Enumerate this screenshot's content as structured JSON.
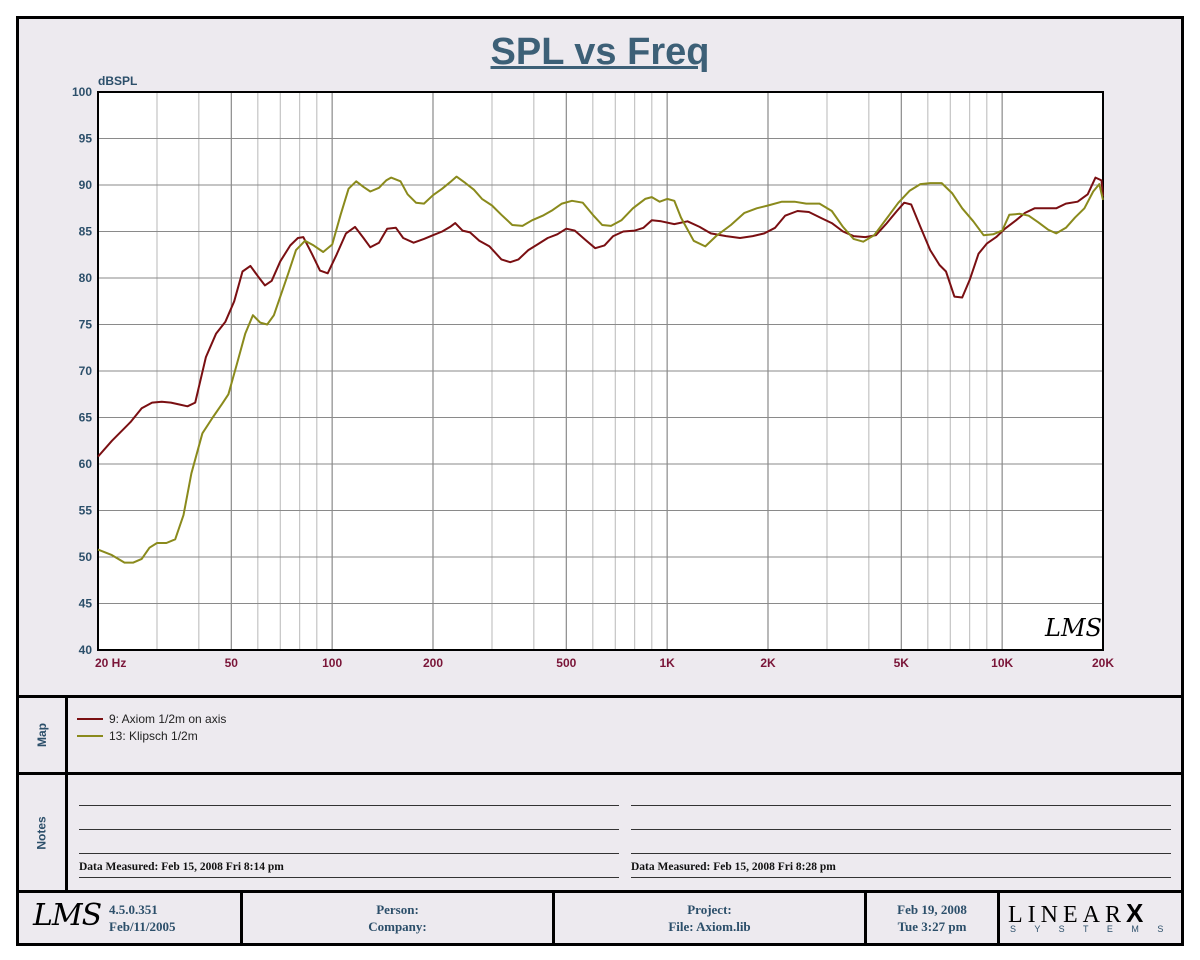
{
  "chart_data": {
    "type": "line",
    "title": "SPL vs Freq",
    "ylabel": "dBSPL",
    "xlabel": "",
    "xscale": "log",
    "xlim": [
      20,
      20000
    ],
    "ylim": [
      40,
      100
    ],
    "yticks": [
      "100",
      "95",
      "90",
      "85",
      "80",
      "75",
      "70",
      "65",
      "60",
      "55",
      "50",
      "45",
      "40"
    ],
    "xticks": [
      {
        "label": "20  Hz",
        "value": 20
      },
      {
        "label": "50",
        "value": 50
      },
      {
        "label": "100",
        "value": 100
      },
      {
        "label": "200",
        "value": 200
      },
      {
        "label": "500",
        "value": 500
      },
      {
        "label": "1K",
        "value": 1000
      },
      {
        "label": "2K",
        "value": 2000
      },
      {
        "label": "5K",
        "value": 5000
      },
      {
        "label": "10K",
        "value": 10000
      },
      {
        "label": "20K",
        "value": 20000
      }
    ],
    "grid": true,
    "watermark": "LMS",
    "series": [
      {
        "name": "9: Axiom 1/2m on axis",
        "color": "#7a0f12",
        "points": [
          [
            20,
            60.8
          ],
          [
            22,
            62.5
          ],
          [
            25,
            64.5
          ],
          [
            27,
            66
          ],
          [
            29,
            66.6
          ],
          [
            31,
            66.7
          ],
          [
            33,
            66.6
          ],
          [
            35,
            66.4
          ],
          [
            37,
            66.2
          ],
          [
            39,
            66.6
          ],
          [
            42,
            71.5
          ],
          [
            45,
            74
          ],
          [
            48,
            75.3
          ],
          [
            51,
            77.5
          ],
          [
            54,
            80.7
          ],
          [
            57,
            81.3
          ],
          [
            60,
            80.2
          ],
          [
            63,
            79.2
          ],
          [
            66,
            79.7
          ],
          [
            70,
            81.8
          ],
          [
            75,
            83.5
          ],
          [
            79,
            84.3
          ],
          [
            82,
            84.4
          ],
          [
            87,
            82.6
          ],
          [
            92,
            80.8
          ],
          [
            97,
            80.5
          ],
          [
            103,
            82.5
          ],
          [
            110,
            84.8
          ],
          [
            117,
            85.5
          ],
          [
            124,
            84.3
          ],
          [
            130,
            83.3
          ],
          [
            138,
            83.8
          ],
          [
            146,
            85.3
          ],
          [
            155,
            85.4
          ],
          [
            163,
            84.3
          ],
          [
            175,
            83.8
          ],
          [
            188,
            84.2
          ],
          [
            200,
            84.6
          ],
          [
            213,
            85
          ],
          [
            225,
            85.5
          ],
          [
            233,
            85.9
          ],
          [
            245,
            85.1
          ],
          [
            258,
            84.9
          ],
          [
            275,
            84
          ],
          [
            295,
            83.4
          ],
          [
            320,
            82
          ],
          [
            340,
            81.7
          ],
          [
            360,
            82
          ],
          [
            385,
            83
          ],
          [
            410,
            83.6
          ],
          [
            440,
            84.3
          ],
          [
            470,
            84.7
          ],
          [
            500,
            85.3
          ],
          [
            530,
            85.1
          ],
          [
            570,
            84.1
          ],
          [
            610,
            83.2
          ],
          [
            650,
            83.5
          ],
          [
            690,
            84.5
          ],
          [
            740,
            85
          ],
          [
            800,
            85.1
          ],
          [
            850,
            85.4
          ],
          [
            900,
            86.2
          ],
          [
            960,
            86.1
          ],
          [
            1050,
            85.8
          ],
          [
            1150,
            86.1
          ],
          [
            1250,
            85.5
          ],
          [
            1350,
            84.8
          ],
          [
            1500,
            84.5
          ],
          [
            1650,
            84.3
          ],
          [
            1800,
            84.5
          ],
          [
            1950,
            84.8
          ],
          [
            2100,
            85.4
          ],
          [
            2250,
            86.7
          ],
          [
            2450,
            87.2
          ],
          [
            2650,
            87.1
          ],
          [
            2900,
            86.4
          ],
          [
            3100,
            85.9
          ],
          [
            3350,
            85
          ],
          [
            3600,
            84.5
          ],
          [
            3900,
            84.4
          ],
          [
            4200,
            84.6
          ],
          [
            4500,
            85.8
          ],
          [
            4850,
            87.2
          ],
          [
            5100,
            88.1
          ],
          [
            5350,
            87.9
          ],
          [
            5700,
            85.5
          ],
          [
            6100,
            83
          ],
          [
            6500,
            81.4
          ],
          [
            6800,
            80.7
          ],
          [
            7200,
            78
          ],
          [
            7600,
            77.9
          ],
          [
            8000,
            79.8
          ],
          [
            8500,
            82.6
          ],
          [
            9000,
            83.7
          ],
          [
            9600,
            84.4
          ],
          [
            10200,
            85.3
          ],
          [
            11000,
            86.2
          ],
          [
            11700,
            87
          ],
          [
            12500,
            87.5
          ],
          [
            13500,
            87.5
          ],
          [
            14500,
            87.5
          ],
          [
            15500,
            88
          ],
          [
            16800,
            88.2
          ],
          [
            18000,
            89
          ],
          [
            19000,
            90.8
          ],
          [
            19800,
            90.5
          ],
          [
            20000,
            88.8
          ]
        ]
      },
      {
        "name": "13: Klipsch 1/2m",
        "color": "#8a8a1c",
        "points": [
          [
            20,
            50.8
          ],
          [
            22,
            50.2
          ],
          [
            24,
            49.4
          ],
          [
            25.5,
            49.4
          ],
          [
            27,
            49.8
          ],
          [
            28.5,
            51
          ],
          [
            30,
            51.5
          ],
          [
            32,
            51.5
          ],
          [
            34,
            51.9
          ],
          [
            36,
            54.5
          ],
          [
            38,
            59
          ],
          [
            41,
            63.3
          ],
          [
            44,
            65
          ],
          [
            47,
            66.5
          ],
          [
            49,
            67.5
          ],
          [
            52,
            70.8
          ],
          [
            55,
            74
          ],
          [
            58,
            76
          ],
          [
            61,
            75.2
          ],
          [
            64,
            75
          ],
          [
            67,
            76
          ],
          [
            70,
            78
          ],
          [
            74,
            80.5
          ],
          [
            78,
            83
          ],
          [
            83,
            84
          ],
          [
            88,
            83.5
          ],
          [
            94,
            82.8
          ],
          [
            100,
            83.6
          ],
          [
            106,
            86.8
          ],
          [
            112,
            89.6
          ],
          [
            118,
            90.4
          ],
          [
            124,
            89.8
          ],
          [
            130,
            89.3
          ],
          [
            138,
            89.7
          ],
          [
            145,
            90.5
          ],
          [
            150,
            90.8
          ],
          [
            160,
            90.4
          ],
          [
            168,
            89
          ],
          [
            178,
            88.1
          ],
          [
            188,
            88
          ],
          [
            200,
            88.9
          ],
          [
            213,
            89.6
          ],
          [
            225,
            90.3
          ],
          [
            235,
            90.9
          ],
          [
            250,
            90.2
          ],
          [
            265,
            89.5
          ],
          [
            280,
            88.5
          ],
          [
            300,
            87.8
          ],
          [
            320,
            86.8
          ],
          [
            345,
            85.7
          ],
          [
            370,
            85.6
          ],
          [
            395,
            86.2
          ],
          [
            425,
            86.7
          ],
          [
            455,
            87.3
          ],
          [
            485,
            88
          ],
          [
            520,
            88.3
          ],
          [
            560,
            88.1
          ],
          [
            600,
            86.8
          ],
          [
            640,
            85.7
          ],
          [
            680,
            85.6
          ],
          [
            730,
            86.2
          ],
          [
            790,
            87.5
          ],
          [
            860,
            88.5
          ],
          [
            900,
            88.7
          ],
          [
            950,
            88.2
          ],
          [
            1000,
            88.5
          ],
          [
            1050,
            88.3
          ],
          [
            1100,
            86.5
          ],
          [
            1200,
            84
          ],
          [
            1300,
            83.4
          ],
          [
            1400,
            84.5
          ],
          [
            1550,
            85.7
          ],
          [
            1700,
            87
          ],
          [
            1850,
            87.5
          ],
          [
            2000,
            87.8
          ],
          [
            2200,
            88.2
          ],
          [
            2400,
            88.2
          ],
          [
            2600,
            88
          ],
          [
            2850,
            88
          ],
          [
            3100,
            87.2
          ],
          [
            3350,
            85.5
          ],
          [
            3600,
            84.2
          ],
          [
            3850,
            83.9
          ],
          [
            4150,
            84.6
          ],
          [
            4500,
            86.3
          ],
          [
            4900,
            88.1
          ],
          [
            5300,
            89.4
          ],
          [
            5700,
            90.1
          ],
          [
            6100,
            90.2
          ],
          [
            6600,
            90.2
          ],
          [
            7100,
            89.1
          ],
          [
            7600,
            87.5
          ],
          [
            8200,
            86.1
          ],
          [
            8800,
            84.6
          ],
          [
            9400,
            84.7
          ],
          [
            10000,
            85.1
          ],
          [
            10500,
            86.8
          ],
          [
            11300,
            86.9
          ],
          [
            12000,
            86.7
          ],
          [
            12800,
            86
          ],
          [
            13700,
            85.2
          ],
          [
            14500,
            84.8
          ],
          [
            15500,
            85.4
          ],
          [
            16500,
            86.5
          ],
          [
            17600,
            87.5
          ],
          [
            18700,
            89.3
          ],
          [
            19500,
            90.1
          ],
          [
            20000,
            88.4
          ]
        ]
      }
    ]
  },
  "map": {
    "label": "Map",
    "items": [
      {
        "text": "9: Axiom 1/2m on axis",
        "color": "#7a0f12"
      },
      {
        "text": "13: Klipsch 1/2m",
        "color": "#8a8a1c"
      }
    ]
  },
  "notes": {
    "label": "Notes",
    "left_measured": "Data Measured: Feb 15, 2008  Fri  8:14 pm",
    "right_measured": "Data Measured: Feb 15, 2008  Fri  8:28 pm"
  },
  "footer": {
    "logo": "LMS",
    "version": "4.5.0.351",
    "version_date": "Feb/11/2005",
    "person_label": "Person:",
    "company_label": "Company:",
    "project_label": "Project:",
    "file_label": "File: Axiom.lib",
    "date": "Feb 19, 2008",
    "day_time": "Tue  3:27 pm",
    "brand_top": "LINEAR",
    "brand_x": "X",
    "brand_bottom": "S Y S T E M S"
  }
}
